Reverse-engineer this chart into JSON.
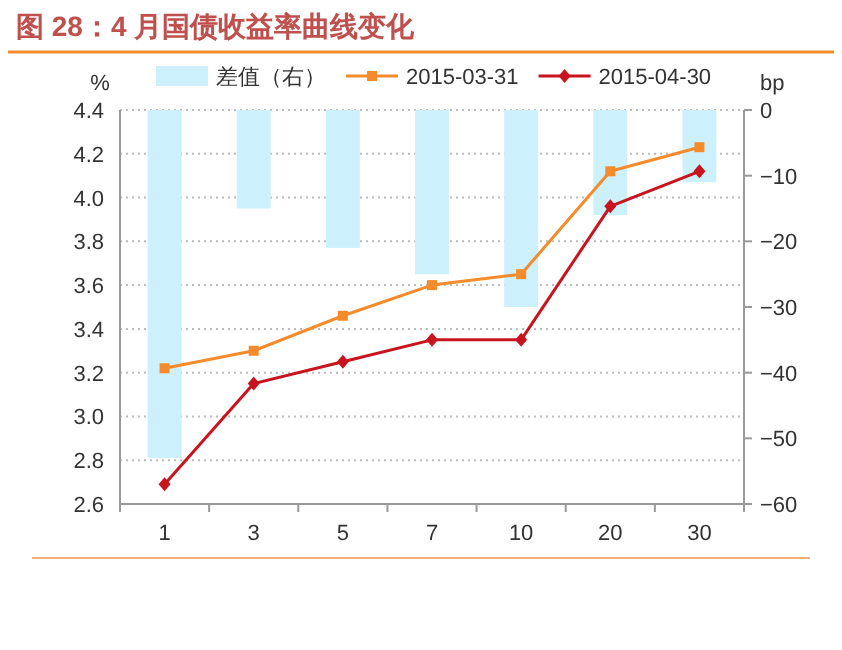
{
  "chart_data": {
    "type": "line",
    "title": "图 28：4 月国债收益率曲线变化",
    "ylabel": "%",
    "y2label": "bp",
    "categories": [
      "1",
      "3",
      "5",
      "7",
      "10",
      "20",
      "30"
    ],
    "series": [
      {
        "name": "差值（右）",
        "type": "bar",
        "axis": "y2",
        "color": "#ccf0fc",
        "values": [
          -53,
          -15,
          -21,
          -25,
          -30,
          -16,
          -11
        ]
      },
      {
        "name": "2015-03-31",
        "color": "#f58b2a",
        "marker": "square",
        "values": [
          3.22,
          3.3,
          3.46,
          3.6,
          3.65,
          4.12,
          4.23
        ]
      },
      {
        "name": "2015-04-30",
        "color": "#c8141e",
        "marker": "diamond",
        "values": [
          2.69,
          3.15,
          3.25,
          3.35,
          3.35,
          3.96,
          4.12
        ]
      }
    ],
    "ylim": [
      2.6,
      4.4
    ],
    "yticks": [
      {
        "value": 2.6,
        "label": "2.6"
      },
      {
        "value": 2.8,
        "label": "2.8"
      },
      {
        "value": 3.0,
        "label": "3.0"
      },
      {
        "value": 3.2,
        "label": "3.2"
      },
      {
        "value": 3.4,
        "label": "3.4"
      },
      {
        "value": 3.6,
        "label": "3.6"
      },
      {
        "value": 3.8,
        "label": "3.8"
      },
      {
        "value": 4.0,
        "label": "4.0"
      },
      {
        "value": 4.2,
        "label": "4.2"
      },
      {
        "value": 4.4,
        "label": "4.4"
      }
    ],
    "y2lim": [
      -60,
      0
    ],
    "y2ticks": [
      {
        "value": -60,
        "label": "−60"
      },
      {
        "value": -50,
        "label": "−50"
      },
      {
        "value": -40,
        "label": "−40"
      },
      {
        "value": -30,
        "label": "−30"
      },
      {
        "value": -20,
        "label": "−20"
      },
      {
        "value": -10,
        "label": "−10"
      },
      0
    ],
    "grid": "y",
    "legend": "top",
    "line_style": "solid"
  }
}
